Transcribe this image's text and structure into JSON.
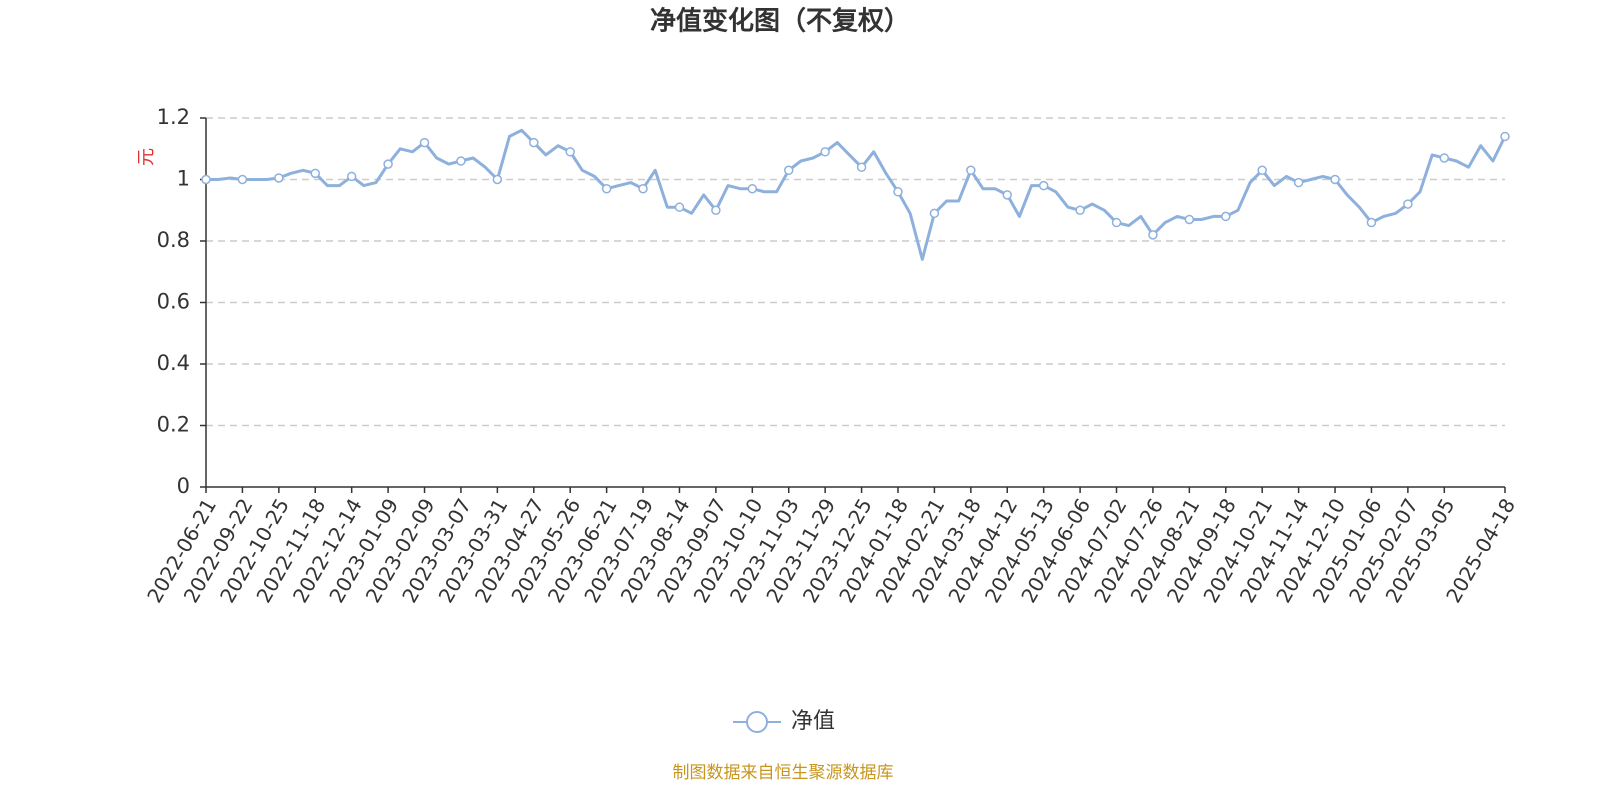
{
  "chart_data": {
    "type": "line",
    "title": "净值变化图（不复权）",
    "y_axis_label": "元",
    "source": "制图数据来自恒生聚源数据库",
    "categories": [
      "2022-06-21",
      null,
      null,
      "2022-09-22",
      null,
      null,
      "2022-10-25",
      null,
      null,
      "2022-11-18",
      null,
      null,
      "2022-12-14",
      null,
      null,
      "2023-01-09",
      null,
      null,
      "2023-02-09",
      null,
      null,
      "2023-03-07",
      null,
      null,
      "2023-03-31",
      null,
      null,
      "2023-04-27",
      null,
      null,
      "2023-05-26",
      null,
      null,
      "2023-06-21",
      null,
      null,
      "2023-07-19",
      null,
      null,
      "2023-08-14",
      null,
      null,
      "2023-09-07",
      null,
      null,
      "2023-10-10",
      null,
      null,
      "2023-11-03",
      null,
      null,
      "2023-11-29",
      null,
      null,
      "2023-12-25",
      null,
      null,
      "2024-01-18",
      null,
      null,
      "2024-02-21",
      null,
      null,
      "2024-03-18",
      null,
      null,
      "2024-04-12",
      null,
      null,
      "2024-05-13",
      null,
      null,
      "2024-06-06",
      null,
      null,
      "2024-07-02",
      null,
      null,
      "2024-07-26",
      null,
      null,
      "2024-08-21",
      null,
      null,
      "2024-09-18",
      null,
      null,
      "2024-10-21",
      null,
      null,
      "2024-11-14",
      null,
      null,
      "2024-12-10",
      null,
      null,
      "2025-01-06",
      null,
      null,
      "2025-02-07",
      null,
      null,
      "2025-03-05",
      null,
      null,
      null,
      null,
      "2025-04-18"
    ],
    "series": [
      {
        "name": "净值",
        "color": "#8eb0dc",
        "values": [
          1.0,
          1.0,
          1.005,
          1.0,
          1.0,
          1.0,
          1.005,
          1.02,
          1.03,
          1.02,
          0.98,
          0.98,
          1.01,
          0.98,
          0.99,
          1.05,
          1.1,
          1.09,
          1.12,
          1.07,
          1.05,
          1.06,
          1.07,
          1.04,
          1.0,
          1.14,
          1.16,
          1.12,
          1.08,
          1.11,
          1.09,
          1.03,
          1.01,
          0.97,
          0.98,
          0.99,
          0.97,
          1.03,
          0.91,
          0.91,
          0.89,
          0.95,
          0.9,
          0.98,
          0.97,
          0.97,
          0.96,
          0.96,
          1.03,
          1.06,
          1.07,
          1.09,
          1.12,
          1.08,
          1.04,
          1.09,
          1.02,
          0.96,
          0.89,
          0.74,
          0.89,
          0.93,
          0.93,
          1.03,
          0.97,
          0.97,
          0.95,
          0.88,
          0.98,
          0.98,
          0.96,
          0.91,
          0.9,
          0.92,
          0.9,
          0.86,
          0.85,
          0.88,
          0.82,
          0.86,
          0.88,
          0.87,
          0.87,
          0.88,
          0.88,
          0.9,
          0.99,
          1.03,
          0.98,
          1.01,
          0.99,
          1.0,
          1.01,
          1.0,
          0.95,
          0.91,
          0.86,
          0.88,
          0.89,
          0.92,
          0.96,
          1.08,
          1.07,
          1.06,
          1.04,
          1.11,
          1.06,
          1.14
        ]
      }
    ],
    "ylim": [
      0,
      1.2
    ],
    "yticks": [
      0,
      0.2,
      0.4,
      0.6,
      0.8,
      1,
      1.2
    ],
    "grid": true,
    "legend": "bottom"
  }
}
